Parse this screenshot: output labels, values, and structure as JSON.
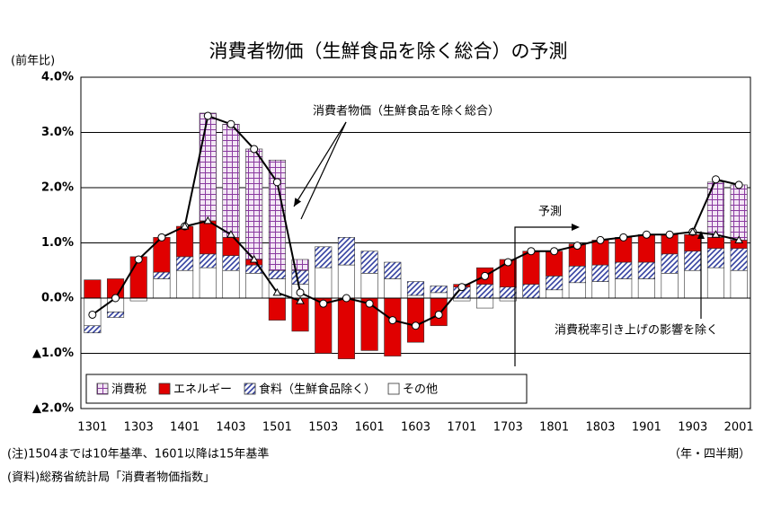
{
  "chart_data": {
    "type": "bar",
    "title": "消費者物価（生鮮食品を除く総合）の予測",
    "y_axis_label": "(前年比)",
    "x_axis_label": "（年・四半期）",
    "notes": [
      "(注)1504までは10年基準、1601以降は15年基準",
      "(資料)総務省統計局「消費者物価指数」"
    ],
    "forecast_label": "予測",
    "categories": [
      "1301",
      null,
      "1303",
      null,
      "1401",
      null,
      "1403",
      null,
      "1501",
      null,
      "1503",
      null,
      "1601",
      null,
      "1603",
      null,
      "1701",
      null,
      "1703",
      null,
      "1801",
      null,
      "1803",
      null,
      "1901",
      null,
      "1903",
      null,
      "2001"
    ],
    "series": [
      {
        "name": "その他",
        "color": "#ffffff",
        "values": [
          -0.5,
          -0.25,
          -0.05,
          0.35,
          0.5,
          0.55,
          0.5,
          0.45,
          0.35,
          0.25,
          0.55,
          0.6,
          0.45,
          0.35,
          0.05,
          0.1,
          -0.05,
          -0.18,
          -0.05,
          0.0,
          0.15,
          0.28,
          0.3,
          0.35,
          0.35,
          0.45,
          0.5,
          0.55,
          0.5
        ]
      },
      {
        "name": "食料（生鮮食品除く）",
        "color": "#3340a0",
        "pattern": "diagonal",
        "values": [
          -0.13,
          -0.1,
          0.0,
          0.12,
          0.25,
          0.25,
          0.27,
          0.15,
          0.15,
          0.25,
          0.38,
          0.5,
          0.4,
          0.3,
          0.25,
          0.12,
          0.2,
          0.25,
          0.2,
          0.25,
          0.25,
          0.3,
          0.3,
          0.3,
          0.3,
          0.35,
          0.35,
          0.35,
          0.4
        ]
      },
      {
        "name": "エネルギー",
        "color": "#e00000",
        "values": [
          0.33,
          0.35,
          0.75,
          0.63,
          0.55,
          0.6,
          0.33,
          0.1,
          -0.4,
          -0.6,
          -1.0,
          -1.1,
          -0.95,
          -1.05,
          -0.8,
          -0.5,
          0.05,
          0.3,
          0.5,
          0.6,
          0.45,
          0.4,
          0.45,
          0.45,
          0.5,
          0.35,
          0.3,
          0.2,
          0.15
        ]
      },
      {
        "name": "消費税",
        "color": "#8a3aa0",
        "pattern": "grid",
        "values": [
          0,
          0,
          0,
          0,
          0,
          1.95,
          2.05,
          2.0,
          2.0,
          0.2,
          0,
          0,
          0,
          0,
          0,
          0,
          0,
          0,
          0,
          0,
          0,
          0,
          0,
          0,
          0,
          0,
          0,
          1.0,
          1.0
        ]
      }
    ],
    "lines": [
      {
        "name": "消費者物価（生鮮食品を除く総合）",
        "color": "#000000",
        "marker": "circle",
        "values": [
          -0.3,
          0.0,
          0.7,
          1.1,
          1.3,
          3.3,
          3.15,
          2.7,
          2.1,
          0.1,
          -0.1,
          0.0,
          -0.1,
          -0.4,
          -0.5,
          -0.3,
          0.2,
          0.4,
          0.65,
          0.85,
          0.85,
          0.95,
          1.05,
          1.1,
          1.15,
          1.15,
          1.2,
          2.15,
          2.05
        ]
      },
      {
        "name": "消費税率引き上げの影響を除く",
        "color": "#000000",
        "marker": "triangle",
        "values": [
          null,
          null,
          null,
          null,
          1.3,
          1.4,
          1.15,
          0.7,
          0.1,
          -0.05,
          null,
          null,
          null,
          null,
          null,
          null,
          null,
          null,
          null,
          null,
          null,
          null,
          null,
          null,
          null,
          null,
          1.2,
          1.15,
          1.05
        ]
      }
    ],
    "ylim": [
      -2.0,
      4.0
    ],
    "yticks": [
      {
        "value": 4.0,
        "label": "4.0%"
      },
      {
        "value": 3.0,
        "label": "3.0%"
      },
      {
        "value": 2.0,
        "label": "2.0%"
      },
      {
        "value": 1.0,
        "label": "1.0%"
      },
      {
        "value": 0.0,
        "label": "0.0%"
      },
      {
        "value": -1.0,
        "label": "▲1.0%"
      },
      {
        "value": -2.0,
        "label": "▲2.0%"
      }
    ],
    "grid": true,
    "legend": "lower left"
  }
}
